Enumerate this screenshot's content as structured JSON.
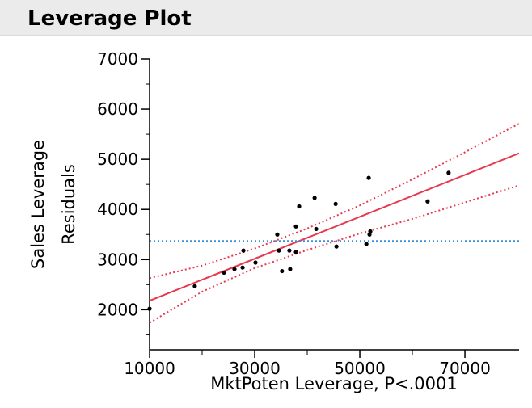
{
  "chart_data": {
    "type": "scatter",
    "title": "Leverage Plot",
    "y_label": [
      "Sales Leverage",
      "Residuals"
    ],
    "x_label": "MktPoten Leverage, P<.0001",
    "xlim": [
      10000,
      80300
    ],
    "ylim": [
      1200,
      7000
    ],
    "xticks": [
      10000,
      30000,
      50000,
      70000
    ],
    "yticks": [
      2000,
      3000,
      4000,
      5000,
      6000,
      7000
    ],
    "xminorticks": [
      20000,
      40000,
      60000
    ],
    "yminorticks": [
      1500,
      2500,
      3500,
      4500,
      5500,
      6500
    ],
    "series": [
      {
        "kind": "points",
        "color": "#000000",
        "x": [
          10000,
          18600,
          24150,
          26150,
          27850,
          27700,
          30150,
          34300,
          34600,
          35200,
          36600,
          36750,
          37850,
          37850,
          38460,
          41400,
          41700,
          45400,
          45550,
          51250,
          51700,
          51850,
          52000,
          62900,
          66900
        ],
        "values": [
          2020,
          2470,
          2740,
          2810,
          3180,
          2840,
          2940,
          3500,
          3180,
          2770,
          3180,
          2810,
          3150,
          3660,
          4060,
          4230,
          3610,
          4110,
          3260,
          3310,
          4630,
          3500,
          3560,
          4160,
          4730
        ]
      },
      {
        "kind": "line",
        "color": "#e8384f",
        "x": [
          10000,
          80300
        ],
        "values": [
          2180,
          5120
        ]
      },
      {
        "kind": "dotted",
        "color": "#e8384f",
        "x": [
          10000,
          20000,
          30000,
          40000,
          50000,
          60000,
          70000,
          80300
        ],
        "values": [
          2630,
          2880,
          3220,
          3620,
          4080,
          4600,
          5140,
          5710
        ]
      },
      {
        "kind": "dotted",
        "color": "#e8384f",
        "x": [
          10000,
          20000,
          30000,
          40000,
          50000,
          60000,
          70000,
          80300
        ],
        "values": [
          1740,
          2360,
          2830,
          3190,
          3520,
          3810,
          4140,
          4480
        ]
      },
      {
        "kind": "dotted",
        "color": "#3b8fd9",
        "x": [
          10000,
          80300
        ],
        "values": [
          3370,
          3370
        ]
      }
    ]
  }
}
